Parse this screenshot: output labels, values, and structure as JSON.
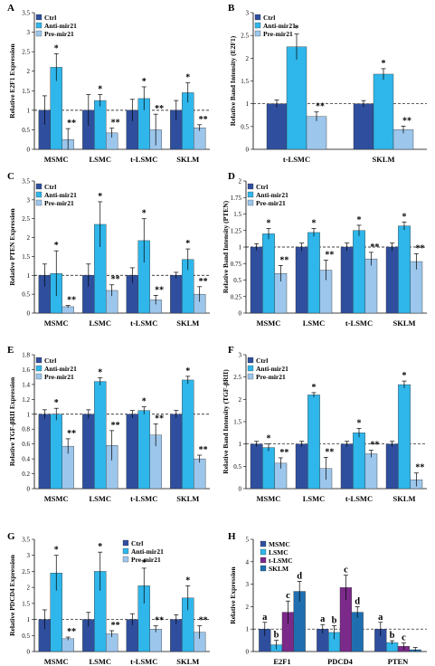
{
  "colors": {
    "ctrl": "#2f4f9e",
    "anti": "#2fb6ea",
    "pre": "#9cc6ec",
    "msmc": "#2f4f9e",
    "lsmc": "#2fb6ea",
    "tlsmc": "#7b2a8a",
    "sklm": "#1f6fb0"
  },
  "chart_data": [
    {
      "panel": "A",
      "type": "bar",
      "ylabel": "Relative E2F1 Expression",
      "ylim": [
        0,
        3.5
      ],
      "yticks": [
        0,
        0.5,
        1,
        1.5,
        2,
        2.5,
        3,
        3.5
      ],
      "categories": [
        "MSMC",
        "LSMC",
        "t-LSMC",
        "SKLM"
      ],
      "series": [
        {
          "name": "Ctrl",
          "color_key": "ctrl",
          "values": [
            1.0,
            1.0,
            1.0,
            1.0
          ],
          "errors": [
            0.37,
            0.4,
            0.28,
            0.25
          ],
          "sig": [
            "",
            "",
            "",
            ""
          ]
        },
        {
          "name": "Anti-mir21",
          "color_key": "anti",
          "values": [
            2.1,
            1.25,
            1.3,
            1.45
          ],
          "errors": [
            0.35,
            0.15,
            0.3,
            0.25
          ],
          "sig": [
            "*",
            "*",
            "*",
            "*"
          ]
        },
        {
          "name": "Pre-mir21",
          "color_key": "pre",
          "values": [
            0.25,
            0.42,
            0.5,
            0.55
          ],
          "errors": [
            0.28,
            0.12,
            0.4,
            0.08
          ],
          "sig": [
            "**",
            "**",
            "**",
            "**"
          ]
        }
      ],
      "legend": "top-left"
    },
    {
      "panel": "B",
      "type": "bar",
      "ylabel": "Relative Band Intensity (E2F1)",
      "ylim": [
        0,
        3
      ],
      "yticks": [
        0,
        0.5,
        1,
        1.5,
        2,
        2.5,
        3
      ],
      "categories": [
        "t-LSMC",
        "SKLM"
      ],
      "series": [
        {
          "name": "Ctrl",
          "color_key": "ctrl",
          "values": [
            1.0,
            1.0
          ],
          "errors": [
            0.08,
            0.07
          ],
          "sig": [
            "",
            ""
          ]
        },
        {
          "name": "Anti-mir21",
          "color_key": "anti",
          "values": [
            2.25,
            1.65
          ],
          "errors": [
            0.28,
            0.12
          ],
          "sig": [
            "*",
            "*"
          ]
        },
        {
          "name": "Pre-mir21",
          "color_key": "pre",
          "values": [
            0.72,
            0.43
          ],
          "errors": [
            0.1,
            0.08
          ],
          "sig": [
            "**",
            "**"
          ]
        }
      ],
      "legend": "top-left"
    },
    {
      "panel": "C",
      "type": "bar",
      "ylabel": "Relative PTEN Expression",
      "ylim": [
        0,
        3.5
      ],
      "yticks": [
        0,
        0.5,
        1,
        1.5,
        2,
        2.5,
        3,
        3.5
      ],
      "categories": [
        "MSMC",
        "LSMC",
        "t-LSMC",
        "SKLM"
      ],
      "series": [
        {
          "name": "Ctrl",
          "color_key": "ctrl",
          "values": [
            1.0,
            1.0,
            1.0,
            1.0
          ],
          "errors": [
            0.3,
            0.3,
            0.2,
            0.08
          ],
          "sig": [
            "",
            "",
            "",
            ""
          ]
        },
        {
          "name": "Anti-mir21",
          "color_key": "anti",
          "values": [
            1.05,
            2.35,
            1.92,
            1.42
          ],
          "errors": [
            0.6,
            0.6,
            0.58,
            0.28
          ],
          "sig": [
            "*",
            "*",
            "*",
            "*"
          ]
        },
        {
          "name": "Pre-mir21",
          "color_key": "pre",
          "values": [
            0.17,
            0.6,
            0.35,
            0.5
          ],
          "errors": [
            0.03,
            0.15,
            0.12,
            0.2
          ],
          "sig": [
            "**",
            "**",
            "**",
            "**"
          ]
        }
      ],
      "legend": "top-left"
    },
    {
      "panel": "D",
      "type": "bar",
      "ylabel": "Relative Band Intensity (PTEN)",
      "ylim": [
        0,
        2
      ],
      "yticks": [
        0,
        0.25,
        0.5,
        0.75,
        1,
        1.25,
        1.5,
        1.75,
        2
      ],
      "categories": [
        "MSMC",
        "LSMC",
        "t-LSMC",
        "SKLM"
      ],
      "series": [
        {
          "name": "Ctrl",
          "color_key": "ctrl",
          "values": [
            1.0,
            1.0,
            1.0,
            1.0
          ],
          "errors": [
            0.05,
            0.06,
            0.06,
            0.06
          ],
          "sig": [
            "",
            "",
            "",
            ""
          ]
        },
        {
          "name": "Anti-mir21",
          "color_key": "anti",
          "values": [
            1.2,
            1.22,
            1.25,
            1.32
          ],
          "errors": [
            0.08,
            0.06,
            0.08,
            0.06
          ],
          "sig": [
            "*",
            "*",
            "*",
            "*"
          ]
        },
        {
          "name": "Pre-mir21",
          "color_key": "pre",
          "values": [
            0.6,
            0.65,
            0.82,
            0.78
          ],
          "errors": [
            0.12,
            0.15,
            0.1,
            0.12
          ],
          "sig": [
            "**",
            "**",
            "**",
            "**"
          ]
        }
      ],
      "legend": "top-left"
    },
    {
      "panel": "E",
      "type": "bar",
      "ylabel": "Relative TGF-βRII Expression",
      "ylim": [
        0,
        1.8
      ],
      "yticks": [
        0,
        0.2,
        0.4,
        0.6,
        0.8,
        1,
        1.2,
        1.4,
        1.6,
        1.8
      ],
      "categories": [
        "MSMC",
        "LSMC",
        "t-LSMC",
        "SKLM"
      ],
      "series": [
        {
          "name": "Ctrl",
          "color_key": "ctrl",
          "values": [
            1.0,
            1.0,
            1.0,
            1.0
          ],
          "errors": [
            0.06,
            0.06,
            0.05,
            0.05
          ],
          "sig": [
            "",
            "",
            "",
            ""
          ]
        },
        {
          "name": "Anti-mir21",
          "color_key": "anti",
          "values": [
            1.0,
            1.44,
            1.05,
            1.46
          ],
          "errors": [
            0.08,
            0.05,
            0.05,
            0.05
          ],
          "sig": [
            "*",
            "*",
            "*",
            "*"
          ]
        },
        {
          "name": "Pre-mir21",
          "color_key": "pre",
          "values": [
            0.57,
            0.58,
            0.72,
            0.4
          ],
          "errors": [
            0.1,
            0.2,
            0.15,
            0.05
          ],
          "sig": [
            "**",
            "**",
            "**",
            "**"
          ]
        }
      ],
      "legend": "top-left"
    },
    {
      "panel": "F",
      "type": "bar",
      "ylabel": "Relative Band Intensity (TGF-βRII)",
      "ylim": [
        0,
        3
      ],
      "yticks": [
        0,
        0.5,
        1,
        1.5,
        2,
        2.5,
        3
      ],
      "categories": [
        "MSMC",
        "LSMC",
        "t-LSMC",
        "SKLM"
      ],
      "series": [
        {
          "name": "Ctrl",
          "color_key": "ctrl",
          "values": [
            1.0,
            1.0,
            1.0,
            1.0
          ],
          "errors": [
            0.06,
            0.06,
            0.06,
            0.06
          ],
          "sig": [
            "",
            "",
            "",
            ""
          ]
        },
        {
          "name": "Anti-mir21",
          "color_key": "anti",
          "values": [
            0.92,
            2.1,
            1.25,
            2.33
          ],
          "errors": [
            0.08,
            0.05,
            0.1,
            0.08
          ],
          "sig": [
            "*",
            "*",
            "*",
            "*"
          ]
        },
        {
          "name": "Pre-mir21",
          "color_key": "pre",
          "values": [
            0.57,
            0.45,
            0.78,
            0.2
          ],
          "errors": [
            0.12,
            0.25,
            0.08,
            0.15
          ],
          "sig": [
            "**",
            "**",
            "**",
            "**"
          ]
        }
      ],
      "legend": "top-left"
    },
    {
      "panel": "G",
      "type": "bar",
      "ylabel": "Relative PDCD4 Expression",
      "ylim": [
        0,
        3.5
      ],
      "yticks": [
        0,
        0.5,
        1,
        1.5,
        2,
        2.5,
        3,
        3.5
      ],
      "categories": [
        "MSMC",
        "LSMC",
        "t-LSMC",
        "SKLM"
      ],
      "series": [
        {
          "name": "Ctrl",
          "color_key": "ctrl",
          "values": [
            1.0,
            1.0,
            1.0,
            1.0
          ],
          "errors": [
            0.3,
            0.22,
            0.18,
            0.15
          ],
          "sig": [
            "",
            "",
            "",
            ""
          ]
        },
        {
          "name": "Anti-mir21",
          "color_key": "anti",
          "values": [
            2.45,
            2.5,
            2.05,
            1.67
          ],
          "errors": [
            0.55,
            0.6,
            0.55,
            0.38
          ],
          "sig": [
            "*",
            "*",
            "*",
            "*"
          ]
        },
        {
          "name": "Pre-mir21",
          "color_key": "pre",
          "values": [
            0.4,
            0.55,
            0.7,
            0.6
          ],
          "errors": [
            0.05,
            0.1,
            0.1,
            0.2
          ],
          "sig": [
            "**",
            "**",
            "**",
            "**"
          ]
        }
      ],
      "legend": "top-right"
    },
    {
      "panel": "H",
      "type": "bar",
      "ylabel": "Relative Expression",
      "ylim": [
        0,
        5
      ],
      "yticks": [
        0,
        1,
        2,
        3,
        4,
        5
      ],
      "categories": [
        "E2F1",
        "PDCD4",
        "PTEN"
      ],
      "series": [
        {
          "name": "MSMC",
          "color_key": "msmc",
          "values": [
            1.0,
            1.0,
            1.0
          ],
          "errors": [
            0.3,
            0.2,
            0.3
          ],
          "sig": [
            "a",
            "a",
            "a"
          ]
        },
        {
          "name": "LSMC",
          "color_key": "lsmc",
          "values": [
            0.3,
            0.85,
            0.4
          ],
          "errors": [
            0.2,
            0.3,
            0.08
          ],
          "sig": [
            "b",
            "b",
            "b"
          ]
        },
        {
          "name": "t-LSMC",
          "color_key": "tlsmc",
          "values": [
            1.75,
            2.85,
            0.23
          ],
          "errors": [
            0.5,
            0.55,
            0.15
          ],
          "sig": [
            "c",
            "c",
            "c"
          ]
        },
        {
          "name": "SKLM",
          "color_key": "sklm",
          "values": [
            2.68,
            1.75,
            0.08
          ],
          "errors": [
            0.45,
            0.25,
            0.1
          ],
          "sig": [
            "d",
            "d",
            ""
          ]
        }
      ],
      "legend": "top-left"
    }
  ]
}
